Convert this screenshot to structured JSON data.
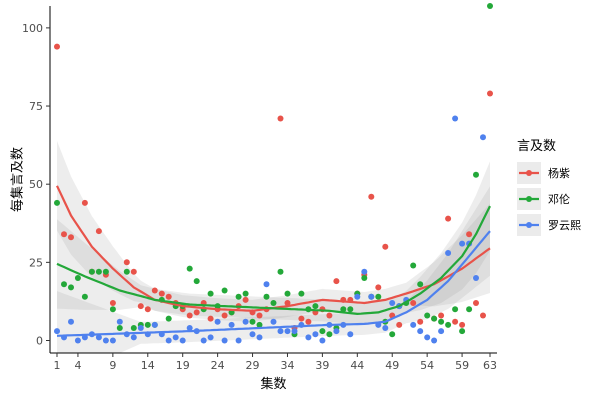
{
  "chart_data": {
    "type": "scatter",
    "title": "",
    "xlabel": "集数",
    "ylabel": "每集言及数",
    "xlim": [
      0,
      64
    ],
    "ylim": [
      -4,
      107
    ],
    "xticks": [
      1,
      4,
      9,
      14,
      19,
      24,
      29,
      34,
      39,
      44,
      49,
      54,
      59,
      63
    ],
    "yticks": [
      0,
      25,
      50,
      75,
      100
    ],
    "grid": false,
    "legend": {
      "title": "言及数",
      "position": "right"
    },
    "series": [
      {
        "name": "杨紫",
        "color": "#E8534A",
        "points": [
          [
            1,
            94
          ],
          [
            2,
            34
          ],
          [
            3,
            33
          ],
          [
            5,
            44
          ],
          [
            6,
            22
          ],
          [
            7,
            35
          ],
          [
            8,
            21
          ],
          [
            9,
            12
          ],
          [
            11,
            25
          ],
          [
            12,
            22
          ],
          [
            13,
            11
          ],
          [
            14,
            10
          ],
          [
            15,
            16
          ],
          [
            16,
            15
          ],
          [
            17,
            14
          ],
          [
            18,
            12
          ],
          [
            19,
            10
          ],
          [
            20,
            8
          ],
          [
            21,
            9
          ],
          [
            22,
            12
          ],
          [
            23,
            7
          ],
          [
            24,
            10
          ],
          [
            25,
            8
          ],
          [
            26,
            9
          ],
          [
            27,
            11
          ],
          [
            28,
            13
          ],
          [
            29,
            9
          ],
          [
            30,
            8
          ],
          [
            31,
            10
          ],
          [
            33,
            71
          ],
          [
            34,
            12
          ],
          [
            35,
            4
          ],
          [
            36,
            7
          ],
          [
            37,
            6
          ],
          [
            38,
            9
          ],
          [
            39,
            10
          ],
          [
            40,
            8
          ],
          [
            41,
            19
          ],
          [
            42,
            13
          ],
          [
            43,
            13
          ],
          [
            44,
            15
          ],
          [
            45,
            21
          ],
          [
            46,
            46
          ],
          [
            47,
            17
          ],
          [
            48,
            30
          ],
          [
            49,
            8
          ],
          [
            50,
            5
          ],
          [
            52,
            12
          ],
          [
            53,
            6
          ],
          [
            55,
            7
          ],
          [
            56,
            8
          ],
          [
            57,
            39
          ],
          [
            58,
            6
          ],
          [
            59,
            5
          ],
          [
            60,
            34
          ],
          [
            61,
            12
          ],
          [
            62,
            8
          ],
          [
            63,
            79
          ]
        ],
        "trend": [
          [
            1,
            49.5
          ],
          [
            3,
            40
          ],
          [
            6,
            30
          ],
          [
            9,
            23
          ],
          [
            12,
            17
          ],
          [
            15,
            13
          ],
          [
            19,
            11
          ],
          [
            24,
            10
          ],
          [
            29,
            9.5
          ],
          [
            34,
            11
          ],
          [
            39,
            13
          ],
          [
            42,
            12.5
          ],
          [
            45,
            12
          ],
          [
            48,
            13
          ],
          [
            51,
            15
          ],
          [
            55,
            18
          ],
          [
            59,
            23
          ],
          [
            63,
            29.5
          ]
        ]
      },
      {
        "name": "邓伦",
        "color": "#23A839",
        "points": [
          [
            1,
            44
          ],
          [
            2,
            18
          ],
          [
            3,
            17
          ],
          [
            4,
            20
          ],
          [
            5,
            14
          ],
          [
            6,
            22
          ],
          [
            7,
            22
          ],
          [
            8,
            22
          ],
          [
            9,
            10
          ],
          [
            10,
            4
          ],
          [
            11,
            22
          ],
          [
            12,
            4
          ],
          [
            13,
            5
          ],
          [
            14,
            5
          ],
          [
            15,
            5
          ],
          [
            16,
            13
          ],
          [
            17,
            7
          ],
          [
            18,
            11
          ],
          [
            19,
            11
          ],
          [
            20,
            23
          ],
          [
            21,
            19
          ],
          [
            22,
            10
          ],
          [
            23,
            15
          ],
          [
            24,
            11
          ],
          [
            25,
            16
          ],
          [
            26,
            9
          ],
          [
            27,
            14
          ],
          [
            28,
            15
          ],
          [
            29,
            6
          ],
          [
            30,
            5
          ],
          [
            31,
            14
          ],
          [
            32,
            12
          ],
          [
            33,
            22
          ],
          [
            34,
            15
          ],
          [
            35,
            2
          ],
          [
            36,
            15
          ],
          [
            37,
            10
          ],
          [
            38,
            11
          ],
          [
            39,
            3
          ],
          [
            40,
            2
          ],
          [
            41,
            4
          ],
          [
            42,
            10
          ],
          [
            43,
            10
          ],
          [
            44,
            15
          ],
          [
            45,
            20
          ],
          [
            46,
            14
          ],
          [
            47,
            14
          ],
          [
            48,
            6
          ],
          [
            49,
            2
          ],
          [
            50,
            11
          ],
          [
            51,
            12
          ],
          [
            52,
            24
          ],
          [
            53,
            18
          ],
          [
            54,
            8
          ],
          [
            55,
            7
          ],
          [
            56,
            6
          ],
          [
            57,
            5
          ],
          [
            58,
            10
          ],
          [
            59,
            3
          ],
          [
            60,
            10
          ],
          [
            61,
            53
          ],
          [
            63,
            107
          ]
        ],
        "trend": [
          [
            1,
            24.5
          ],
          [
            5,
            20.5
          ],
          [
            10,
            16
          ],
          [
            15,
            13
          ],
          [
            20,
            11.5
          ],
          [
            25,
            11
          ],
          [
            30,
            10.5
          ],
          [
            35,
            10
          ],
          [
            40,
            9.5
          ],
          [
            44,
            8.5
          ],
          [
            47,
            9
          ],
          [
            50,
            11
          ],
          [
            53,
            15
          ],
          [
            56,
            20
          ],
          [
            59,
            27
          ],
          [
            61,
            34
          ],
          [
            63,
            43
          ]
        ]
      },
      {
        "name": "罗云熙",
        "color": "#4F81EE",
        "points": [
          [
            1,
            3
          ],
          [
            2,
            1
          ],
          [
            3,
            6
          ],
          [
            4,
            0
          ],
          [
            5,
            1
          ],
          [
            6,
            2
          ],
          [
            7,
            1
          ],
          [
            8,
            0
          ],
          [
            9,
            0
          ],
          [
            10,
            6
          ],
          [
            11,
            2
          ],
          [
            12,
            1
          ],
          [
            13,
            4
          ],
          [
            14,
            2
          ],
          [
            15,
            5
          ],
          [
            16,
            2
          ],
          [
            17,
            0
          ],
          [
            18,
            1
          ],
          [
            19,
            0
          ],
          [
            20,
            4
          ],
          [
            21,
            3
          ],
          [
            22,
            0
          ],
          [
            23,
            1
          ],
          [
            24,
            6
          ],
          [
            25,
            0
          ],
          [
            26,
            5
          ],
          [
            27,
            0
          ],
          [
            28,
            6
          ],
          [
            29,
            2
          ],
          [
            30,
            1
          ],
          [
            31,
            18
          ],
          [
            32,
            6
          ],
          [
            33,
            3
          ],
          [
            34,
            3
          ],
          [
            35,
            3
          ],
          [
            36,
            5
          ],
          [
            37,
            1
          ],
          [
            38,
            2
          ],
          [
            39,
            0
          ],
          [
            40,
            5
          ],
          [
            41,
            3
          ],
          [
            42,
            5
          ],
          [
            43,
            2
          ],
          [
            44,
            14
          ],
          [
            45,
            22
          ],
          [
            46,
            14
          ],
          [
            47,
            5
          ],
          [
            48,
            4
          ],
          [
            49,
            12
          ],
          [
            50,
            11
          ],
          [
            51,
            13
          ],
          [
            52,
            5
          ],
          [
            53,
            3
          ],
          [
            54,
            1
          ],
          [
            55,
            0
          ],
          [
            56,
            3
          ],
          [
            57,
            28
          ],
          [
            58,
            71
          ],
          [
            59,
            31
          ],
          [
            60,
            31
          ],
          [
            61,
            20
          ],
          [
            62,
            65
          ]
        ],
        "trend": [
          [
            1,
            1.5
          ],
          [
            10,
            2.2
          ],
          [
            20,
            3
          ],
          [
            30,
            4
          ],
          [
            40,
            5
          ],
          [
            45,
            5.3
          ],
          [
            48,
            6
          ],
          [
            51,
            9
          ],
          [
            54,
            13
          ],
          [
            57,
            19
          ],
          [
            60,
            27
          ],
          [
            63,
            35
          ]
        ]
      }
    ]
  }
}
